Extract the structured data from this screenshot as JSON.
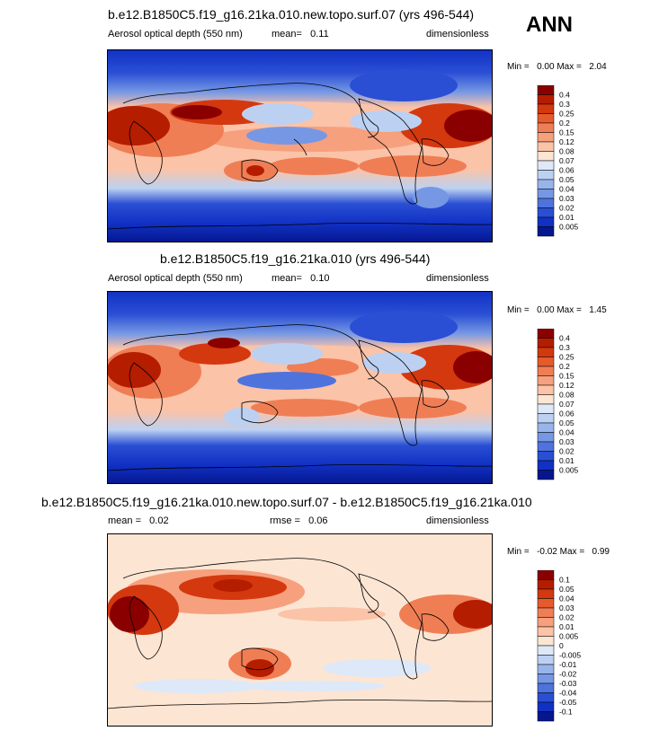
{
  "season": "ANN",
  "panels": [
    {
      "title": "b.e12.B1850C5.f19_g16.21ka.010.new.topo.surf.07 (yrs 496-544)",
      "variable": "Aerosol optical depth (550 nm)",
      "mean_label": "mean=",
      "mean_value": "0.11",
      "rmse_label": "",
      "rmse_value": "",
      "units": "dimensionless",
      "min_label": "Min =",
      "min_value": "0.00",
      "max_label": "Max =",
      "max_value": "2.04",
      "colorbar": {
        "levels": [
          "0.4",
          "0.3",
          "0.25",
          "0.2",
          "0.15",
          "0.12",
          "0.08",
          "0.07",
          "0.06",
          "0.05",
          "0.04",
          "0.03",
          "0.02",
          "0.01",
          "0.005"
        ],
        "colors": [
          "#8a0000",
          "#b51d00",
          "#d4380f",
          "#e55b2c",
          "#f07e55",
          "#f6a07e",
          "#fbc3a8",
          "#fde5d3",
          "#dde9f9",
          "#bcd1f2",
          "#98b5eb",
          "#7698e4",
          "#4f73dd",
          "#2a4fd4",
          "#1131c4",
          "#05178f"
        ]
      }
    },
    {
      "title": "b.e12.B1850C5.f19_g16.21ka.010 (yrs 496-544)",
      "variable": "Aerosol optical depth (550 nm)",
      "mean_label": "mean=",
      "mean_value": "0.10",
      "rmse_label": "",
      "rmse_value": "",
      "units": "dimensionless",
      "min_label": "Min =",
      "min_value": "0.00",
      "max_label": "Max =",
      "max_value": "1.45",
      "colorbar": {
        "levels": [
          "0.4",
          "0.3",
          "0.25",
          "0.2",
          "0.15",
          "0.12",
          "0.08",
          "0.07",
          "0.06",
          "0.05",
          "0.04",
          "0.03",
          "0.02",
          "0.01",
          "0.005"
        ],
        "colors": [
          "#8a0000",
          "#b51d00",
          "#d4380f",
          "#e55b2c",
          "#f07e55",
          "#f6a07e",
          "#fbc3a8",
          "#fde5d3",
          "#dde9f9",
          "#bcd1f2",
          "#98b5eb",
          "#7698e4",
          "#4f73dd",
          "#2a4fd4",
          "#1131c4",
          "#05178f"
        ]
      }
    },
    {
      "title": "b.e12.B1850C5.f19_g16.21ka.010.new.topo.surf.07 - b.e12.B1850C5.f19_g16.21ka.010",
      "variable": "",
      "mean_label": "mean =",
      "mean_value": "0.02",
      "rmse_label": "rmse =",
      "rmse_value": "0.06",
      "units": "dimensionless",
      "min_label": "Min =",
      "min_value": "-0.02",
      "max_label": "Max =",
      "max_value": "0.99",
      "colorbar": {
        "levels": [
          "0.1",
          "0.05",
          "0.04",
          "0.03",
          "0.02",
          "0.01",
          "0.005",
          "0",
          "-0.005",
          "-0.01",
          "-0.02",
          "-0.03",
          "-0.04",
          "-0.05",
          "-0.1"
        ],
        "colors": [
          "#8a0000",
          "#b51d00",
          "#d4380f",
          "#e55b2c",
          "#f07e55",
          "#f6a07e",
          "#fbc3a8",
          "#fde5d3",
          "#dde9f9",
          "#bcd1f2",
          "#98b5eb",
          "#7698e4",
          "#4f73dd",
          "#2a4fd4",
          "#1131c4",
          "#05178f"
        ]
      }
    }
  ],
  "chart_data": [
    {
      "type": "heatmap",
      "title": "b.e12.B1850C5.f19_g16.21ka.010.new.topo.surf.07 (yrs 496-544)",
      "field": "Aerosol optical depth (550 nm)",
      "units": "dimensionless",
      "mean": 0.11,
      "min": 0.0,
      "max": 2.04,
      "contour_levels": [
        0.005,
        0.01,
        0.02,
        0.03,
        0.04,
        0.05,
        0.06,
        0.07,
        0.08,
        0.12,
        0.15,
        0.2,
        0.25,
        0.3,
        0.4
      ],
      "projection": "global cylindrical, Pacific-centered"
    },
    {
      "type": "heatmap",
      "title": "b.e12.B1850C5.f19_g16.21ka.010 (yrs 496-544)",
      "field": "Aerosol optical depth (550 nm)",
      "units": "dimensionless",
      "mean": 0.1,
      "min": 0.0,
      "max": 1.45,
      "contour_levels": [
        0.005,
        0.01,
        0.02,
        0.03,
        0.04,
        0.05,
        0.06,
        0.07,
        0.08,
        0.12,
        0.15,
        0.2,
        0.25,
        0.3,
        0.4
      ],
      "projection": "global cylindrical, Pacific-centered"
    },
    {
      "type": "heatmap",
      "title": "b.e12.B1850C5.f19_g16.21ka.010.new.topo.surf.07 - b.e12.B1850C5.f19_g16.21ka.010",
      "field": "difference",
      "units": "dimensionless",
      "mean": 0.02,
      "rmse": 0.06,
      "min": -0.02,
      "max": 0.99,
      "contour_levels": [
        -0.1,
        -0.05,
        -0.04,
        -0.03,
        -0.02,
        -0.01,
        -0.005,
        0,
        0.005,
        0.01,
        0.02,
        0.03,
        0.04,
        0.05,
        0.1
      ],
      "projection": "global cylindrical, Pacific-centered"
    }
  ]
}
